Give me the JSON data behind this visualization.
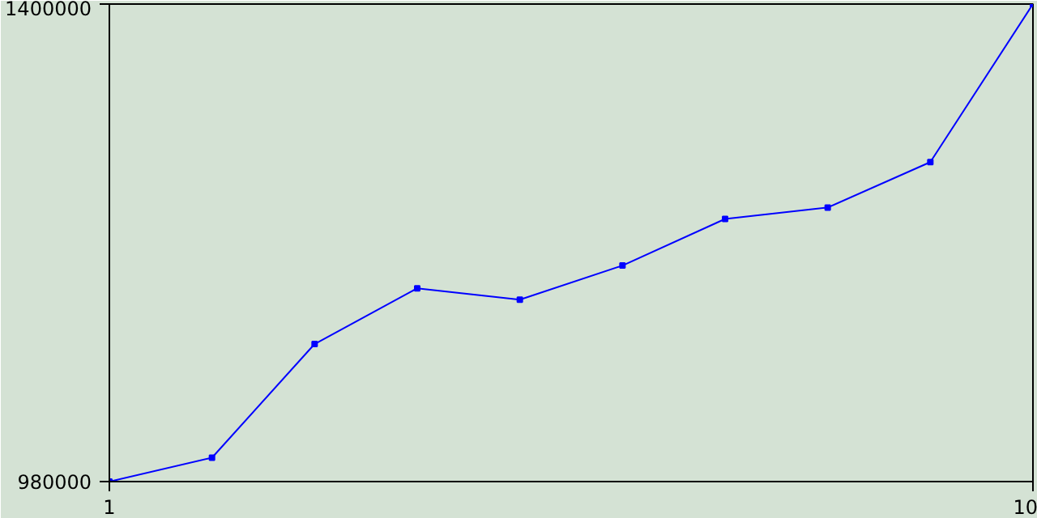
{
  "chart_data": {
    "type": "line",
    "x": [
      1,
      2,
      3,
      4,
      5,
      6,
      7,
      8,
      9,
      10
    ],
    "series": [
      {
        "color": "#0000ff",
        "values": [
          980000,
          1001000,
          1101000,
          1150000,
          1140000,
          1170000,
          1211000,
          1221000,
          1261000,
          1400000
        ]
      }
    ],
    "xlim": [
      1,
      10
    ],
    "ylim": [
      980000,
      1400000
    ],
    "xticks": [
      1,
      10
    ],
    "yticks": [
      980000,
      1400000
    ],
    "marker": "square",
    "line_style": "solid"
  }
}
